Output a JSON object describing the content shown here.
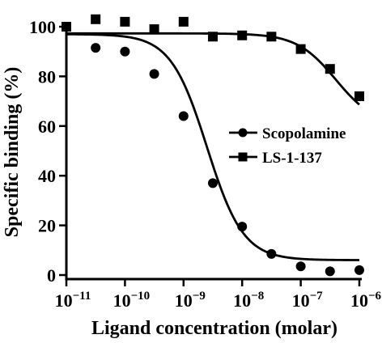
{
  "chart_data": {
    "type": "scatter",
    "xlabel": "Ligand concentration (molar)",
    "ylabel": "Specific binding (%)",
    "xscale": "log",
    "xlim": [
      1e-11,
      1e-06
    ],
    "ylim": [
      0,
      100
    ],
    "x_ticks": [
      {
        "base": "10",
        "exp": "−11",
        "value": 1e-11
      },
      {
        "base": "10",
        "exp": "−10",
        "value": 1e-10
      },
      {
        "base": "10",
        "exp": "−9",
        "value": 1e-09
      },
      {
        "base": "10",
        "exp": "−8",
        "value": 1e-08
      },
      {
        "base": "10",
        "exp": "−7",
        "value": 1e-07
      },
      {
        "base": "10",
        "exp": "−6",
        "value": 1e-06
      }
    ],
    "y_ticks": [
      "0",
      "20",
      "40",
      "60",
      "80",
      "100"
    ],
    "legend_position": "center-right",
    "series": [
      {
        "name": "Scopolamine",
        "marker": "circle",
        "x": [
          3.16e-11,
          1e-10,
          3.16e-10,
          1e-09,
          3.16e-09,
          1e-08,
          3.16e-08,
          1e-07,
          3.16e-07,
          1e-06
        ],
        "y": [
          91.5,
          90,
          81,
          64,
          37,
          19.5,
          8.5,
          3.5,
          1.5,
          2
        ],
        "fit": {
          "top": 97,
          "bottom": 6,
          "logIC50": -8.6,
          "hill": 1.4
        }
      },
      {
        "name": "LS-1-137",
        "marker": "square",
        "x": [
          1e-11,
          3.16e-11,
          1e-10,
          3.16e-10,
          1e-09,
          3.16e-09,
          1e-08,
          3.16e-08,
          1e-07,
          3.16e-07,
          1e-06
        ],
        "y": [
          100,
          103,
          102,
          99,
          102,
          96,
          96.5,
          96,
          91,
          83,
          72
        ],
        "fit": {
          "top": 97.3,
          "bottom": 60,
          "logIC50": -6.4,
          "hill": 1.3
        }
      }
    ]
  }
}
